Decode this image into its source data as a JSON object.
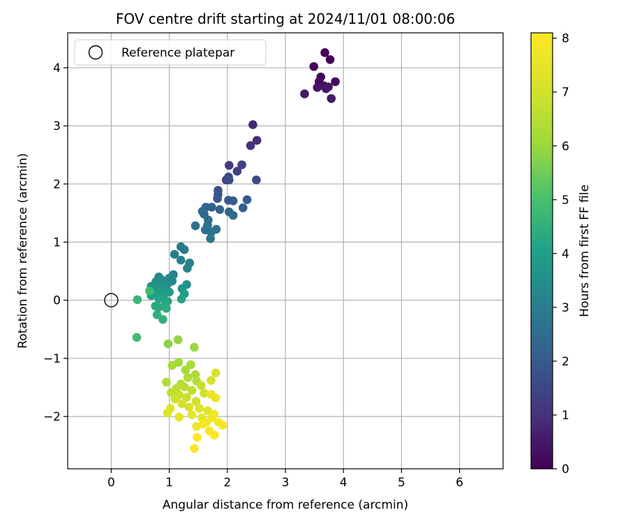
{
  "chart_data": {
    "type": "scatter",
    "title": "FOV centre drift starting at 2024/11/01 08:00:06",
    "xlabel": "Angular distance from reference (arcmin)",
    "ylabel": "Rotation from reference (arcmin)",
    "xlim": [
      -0.75,
      6.75
    ],
    "ylim": [
      -2.9,
      4.6
    ],
    "xticks": [
      0,
      1,
      2,
      3,
      4,
      5,
      6
    ],
    "yticks": [
      -2,
      -1,
      0,
      1,
      2,
      3,
      4
    ],
    "grid": true,
    "legend": {
      "placement": "top-left",
      "entries": [
        "Reference platepar"
      ]
    },
    "reference_point": {
      "x": 0,
      "y": 0,
      "marker": "open-circle"
    },
    "colorbar": {
      "label": "Hours from first FF file",
      "min": 0,
      "max": 8.1,
      "ticks": [
        0,
        1,
        2,
        3,
        4,
        5,
        6,
        7,
        8
      ],
      "colormap": "viridis"
    },
    "points": [
      {
        "x": 3.68,
        "y": 4.26,
        "h": 0.0
      },
      {
        "x": 3.77,
        "y": 4.14,
        "h": 0.05
      },
      {
        "x": 3.49,
        "y": 4.02,
        "h": 0.1
      },
      {
        "x": 3.61,
        "y": 3.84,
        "h": 0.15
      },
      {
        "x": 3.58,
        "y": 3.76,
        "h": 0.2
      },
      {
        "x": 3.86,
        "y": 3.76,
        "h": 0.25
      },
      {
        "x": 3.66,
        "y": 3.69,
        "h": 0.3
      },
      {
        "x": 3.74,
        "y": 3.67,
        "h": 0.35
      },
      {
        "x": 3.55,
        "y": 3.66,
        "h": 0.4
      },
      {
        "x": 3.7,
        "y": 3.64,
        "h": 0.45
      },
      {
        "x": 3.33,
        "y": 3.55,
        "h": 0.5
      },
      {
        "x": 3.79,
        "y": 3.47,
        "h": 0.55
      },
      {
        "x": 2.44,
        "y": 3.02,
        "h": 0.8
      },
      {
        "x": 2.51,
        "y": 2.75,
        "h": 0.9
      },
      {
        "x": 2.4,
        "y": 2.66,
        "h": 1.0
      },
      {
        "x": 2.03,
        "y": 2.32,
        "h": 1.2
      },
      {
        "x": 2.25,
        "y": 2.33,
        "h": 1.3
      },
      {
        "x": 2.17,
        "y": 2.22,
        "h": 1.4
      },
      {
        "x": 2.02,
        "y": 2.12,
        "h": 1.5
      },
      {
        "x": 1.98,
        "y": 2.07,
        "h": 1.55
      },
      {
        "x": 2.5,
        "y": 2.07,
        "h": 1.6
      },
      {
        "x": 2.03,
        "y": 2.07,
        "h": 1.65
      },
      {
        "x": 1.84,
        "y": 1.89,
        "h": 1.8
      },
      {
        "x": 1.84,
        "y": 1.82,
        "h": 1.85
      },
      {
        "x": 1.83,
        "y": 1.75,
        "h": 1.9
      },
      {
        "x": 2.02,
        "y": 1.72,
        "h": 1.95
      },
      {
        "x": 2.1,
        "y": 1.71,
        "h": 2.0
      },
      {
        "x": 2.34,
        "y": 1.73,
        "h": 2.05
      },
      {
        "x": 1.73,
        "y": 1.6,
        "h": 2.1
      },
      {
        "x": 2.27,
        "y": 1.59,
        "h": 2.15
      },
      {
        "x": 1.63,
        "y": 1.6,
        "h": 2.2
      },
      {
        "x": 1.87,
        "y": 1.56,
        "h": 2.25
      },
      {
        "x": 1.57,
        "y": 1.53,
        "h": 2.3
      },
      {
        "x": 2.03,
        "y": 1.52,
        "h": 2.35
      },
      {
        "x": 1.6,
        "y": 1.48,
        "h": 2.4
      },
      {
        "x": 2.1,
        "y": 1.46,
        "h": 2.45
      },
      {
        "x": 1.67,
        "y": 1.38,
        "h": 2.5
      },
      {
        "x": 1.45,
        "y": 1.28,
        "h": 2.55
      },
      {
        "x": 1.66,
        "y": 1.29,
        "h": 2.6
      },
      {
        "x": 1.62,
        "y": 1.21,
        "h": 2.65
      },
      {
        "x": 1.81,
        "y": 1.22,
        "h": 2.7
      },
      {
        "x": 1.72,
        "y": 1.17,
        "h": 2.75
      },
      {
        "x": 1.71,
        "y": 1.06,
        "h": 2.8
      },
      {
        "x": 1.2,
        "y": 0.92,
        "h": 2.9
      },
      {
        "x": 1.26,
        "y": 0.87,
        "h": 2.95
      },
      {
        "x": 1.09,
        "y": 0.79,
        "h": 3.0
      },
      {
        "x": 1.2,
        "y": 0.69,
        "h": 3.05
      },
      {
        "x": 1.35,
        "y": 0.64,
        "h": 3.1
      },
      {
        "x": 1.31,
        "y": 0.55,
        "h": 3.15
      },
      {
        "x": 1.07,
        "y": 0.44,
        "h": 3.2
      },
      {
        "x": 0.82,
        "y": 0.4,
        "h": 3.25
      },
      {
        "x": 1.0,
        "y": 0.38,
        "h": 3.3
      },
      {
        "x": 1.05,
        "y": 0.33,
        "h": 3.35
      },
      {
        "x": 0.87,
        "y": 0.35,
        "h": 3.4
      },
      {
        "x": 0.77,
        "y": 0.32,
        "h": 3.45
      },
      {
        "x": 0.97,
        "y": 0.28,
        "h": 3.5
      },
      {
        "x": 1.3,
        "y": 0.27,
        "h": 3.55
      },
      {
        "x": 0.84,
        "y": 0.25,
        "h": 3.6
      },
      {
        "x": 0.69,
        "y": 0.24,
        "h": 3.65
      },
      {
        "x": 0.75,
        "y": 0.22,
        "h": 3.7
      },
      {
        "x": 1.22,
        "y": 0.2,
        "h": 3.75
      },
      {
        "x": 0.9,
        "y": 0.19,
        "h": 3.8
      },
      {
        "x": 1.0,
        "y": 0.14,
        "h": 3.85
      },
      {
        "x": 0.82,
        "y": 0.12,
        "h": 3.9
      },
      {
        "x": 1.26,
        "y": 0.11,
        "h": 3.95
      },
      {
        "x": 0.69,
        "y": 0.08,
        "h": 4.0
      },
      {
        "x": 0.9,
        "y": 0.05,
        "h": 4.05
      },
      {
        "x": 0.82,
        "y": 0.03,
        "h": 4.1
      },
      {
        "x": 1.21,
        "y": 0.02,
        "h": 4.15
      },
      {
        "x": 0.97,
        "y": -0.02,
        "h": 4.2
      },
      {
        "x": 0.93,
        "y": -0.07,
        "h": 4.25
      },
      {
        "x": 0.76,
        "y": -0.1,
        "h": 4.3
      },
      {
        "x": 0.82,
        "y": -0.12,
        "h": 4.35
      },
      {
        "x": 0.95,
        "y": -0.14,
        "h": 4.4
      },
      {
        "x": 0.79,
        "y": -0.25,
        "h": 4.45
      },
      {
        "x": 0.89,
        "y": -0.33,
        "h": 4.5
      },
      {
        "x": 0.45,
        "y": 0.01,
        "h": 4.7
      },
      {
        "x": 0.66,
        "y": 0.16,
        "h": 4.8
      },
      {
        "x": 0.44,
        "y": -0.64,
        "h": 4.9
      },
      {
        "x": 0.98,
        "y": -0.75,
        "h": 5.8
      },
      {
        "x": 1.15,
        "y": -0.68,
        "h": 5.9
      },
      {
        "x": 1.43,
        "y": -0.81,
        "h": 6.0
      },
      {
        "x": 1.16,
        "y": -1.07,
        "h": 6.1
      },
      {
        "x": 1.05,
        "y": -1.12,
        "h": 6.15
      },
      {
        "x": 1.28,
        "y": -1.2,
        "h": 6.2
      },
      {
        "x": 1.37,
        "y": -1.11,
        "h": 6.25
      },
      {
        "x": 1.45,
        "y": -1.28,
        "h": 6.3
      },
      {
        "x": 1.32,
        "y": -1.33,
        "h": 6.35
      },
      {
        "x": 0.95,
        "y": -1.41,
        "h": 6.4
      },
      {
        "x": 1.47,
        "y": -1.39,
        "h": 6.45
      },
      {
        "x": 1.2,
        "y": -1.44,
        "h": 6.5
      },
      {
        "x": 1.12,
        "y": -1.52,
        "h": 6.55
      },
      {
        "x": 1.26,
        "y": -1.49,
        "h": 6.6
      },
      {
        "x": 1.03,
        "y": -1.59,
        "h": 6.65
      },
      {
        "x": 1.39,
        "y": -1.55,
        "h": 6.7
      },
      {
        "x": 1.55,
        "y": -1.47,
        "h": 6.75
      },
      {
        "x": 1.17,
        "y": -1.63,
        "h": 6.8
      },
      {
        "x": 1.3,
        "y": -1.67,
        "h": 6.85
      },
      {
        "x": 1.1,
        "y": -1.7,
        "h": 6.9
      },
      {
        "x": 1.6,
        "y": -1.6,
        "h": 6.95
      },
      {
        "x": 1.46,
        "y": -1.74,
        "h": 7.0
      },
      {
        "x": 1.22,
        "y": -1.78,
        "h": 7.05
      },
      {
        "x": 1.72,
        "y": -1.38,
        "h": 7.1
      },
      {
        "x": 1.8,
        "y": -1.25,
        "h": 7.15
      },
      {
        "x": 1.34,
        "y": -1.84,
        "h": 7.2
      },
      {
        "x": 1.52,
        "y": -1.86,
        "h": 7.25
      },
      {
        "x": 1.02,
        "y": -1.86,
        "h": 7.3
      },
      {
        "x": 0.97,
        "y": -1.94,
        "h": 7.35
      },
      {
        "x": 1.66,
        "y": -1.9,
        "h": 7.4
      },
      {
        "x": 1.39,
        "y": -1.97,
        "h": 7.45
      },
      {
        "x": 1.56,
        "y": -2.02,
        "h": 7.5
      },
      {
        "x": 1.17,
        "y": -2.01,
        "h": 7.55
      },
      {
        "x": 1.72,
        "y": -1.62,
        "h": 7.6
      },
      {
        "x": 1.8,
        "y": -1.68,
        "h": 7.65
      },
      {
        "x": 1.47,
        "y": -2.17,
        "h": 7.7
      },
      {
        "x": 1.77,
        "y": -1.96,
        "h": 7.75
      },
      {
        "x": 1.64,
        "y": -2.1,
        "h": 7.8
      },
      {
        "x": 1.74,
        "y": -2.02,
        "h": 7.85
      },
      {
        "x": 1.58,
        "y": -2.13,
        "h": 7.9
      },
      {
        "x": 1.85,
        "y": -2.1,
        "h": 7.92
      },
      {
        "x": 1.92,
        "y": -2.15,
        "h": 7.95
      },
      {
        "x": 1.69,
        "y": -2.25,
        "h": 7.98
      },
      {
        "x": 1.78,
        "y": -2.32,
        "h": 8.0
      },
      {
        "x": 1.48,
        "y": -2.36,
        "h": 8.05
      },
      {
        "x": 1.43,
        "y": -2.55,
        "h": 8.1
      }
    ]
  }
}
